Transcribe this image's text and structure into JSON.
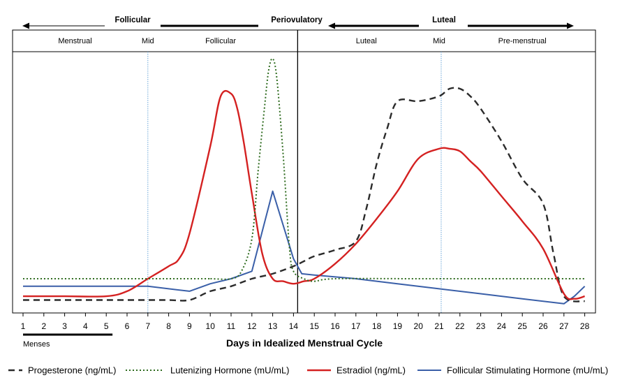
{
  "chart_data": {
    "type": "line",
    "title": "",
    "xlabel": "Days in Idealized Menstrual Cycle",
    "ylabel": "",
    "xlim": [
      1,
      28
    ],
    "ylim": [
      0,
      100
    ],
    "grid": false,
    "legend_placement": "bottom",
    "x_ticks": [
      "1",
      "2",
      "3",
      "4",
      "5",
      "6",
      "7",
      "8",
      "9",
      "10",
      "11",
      "12",
      "13",
      "14",
      "15",
      "16",
      "17",
      "18",
      "19",
      "20",
      "21",
      "22",
      "23",
      "24",
      "25",
      "26",
      "27",
      "28"
    ],
    "phases_top": [
      {
        "label": "Follicular",
        "start": 1,
        "end": 13.5,
        "arrow": "left"
      },
      {
        "label": "Periovulatory",
        "start": 13.5,
        "end": 15.5,
        "arrow": "none"
      },
      {
        "label": "Luteal",
        "start": 15.5,
        "end": 28,
        "arrow": "both"
      }
    ],
    "subphases": [
      {
        "label": "Menstrual",
        "x": 3.5
      },
      {
        "label": "Mid",
        "x": 7
      },
      {
        "label": "Follicular",
        "x": 10.5
      },
      {
        "label": "Luteal",
        "x": 17.5
      },
      {
        "label": "Mid",
        "x": 21
      },
      {
        "label": "Pre-menstrual",
        "x": 25
      }
    ],
    "reference_lines": [
      {
        "x": 7,
        "style": "dotted"
      },
      {
        "x": 14.2,
        "style": "solid"
      },
      {
        "x": 21.1,
        "style": "dotted"
      }
    ],
    "menses": {
      "label": "Menses",
      "start": 1,
      "end": 5.3
    },
    "series": [
      {
        "name": "Progesterone (ng/mL)",
        "color": "#2b2b2b",
        "dash": "9,6",
        "width": 2.4,
        "x": [
          1,
          3,
          5,
          7,
          8,
          9,
          10,
          11,
          12,
          13,
          14,
          14.5,
          15,
          16,
          17,
          17.5,
          18,
          18.5,
          19,
          20,
          21,
          21.5,
          22,
          22.5,
          23,
          24,
          25,
          26,
          26.5,
          27,
          28
        ],
        "y": [
          3.5,
          3.5,
          3.5,
          3.5,
          3.5,
          3.5,
          7,
          9,
          12,
          14,
          17,
          19,
          21,
          23.5,
          27,
          40,
          58,
          72,
          83,
          83,
          85,
          88,
          88,
          85,
          80,
          67,
          52,
          42,
          22,
          5,
          3
        ]
      },
      {
        "name": "Lutenizing Hormone (mU/mL)",
        "color": "#2e6b1e",
        "dash": "2,3",
        "width": 2.0,
        "x": [
          1,
          9,
          10,
          11,
          11.5,
          12,
          12.3,
          12.6,
          12.8,
          13,
          13.2,
          13.5,
          13.8,
          14,
          14.5,
          15,
          16,
          20,
          25,
          28
        ],
        "y": [
          12,
          12,
          12,
          12,
          15,
          28,
          55,
          80,
          95,
          100,
          92,
          62,
          25,
          15,
          12,
          11,
          12,
          12,
          12,
          12
        ]
      },
      {
        "name": "Estradiol (ng/mL)",
        "color": "#d42121",
        "dash": "",
        "width": 2.4,
        "x": [
          1,
          3,
          5,
          6,
          7,
          8,
          8.5,
          9,
          10,
          10.5,
          11,
          11.3,
          11.6,
          12,
          12.5,
          13,
          13.5,
          14,
          14.5,
          15,
          16,
          17,
          18,
          19,
          20,
          21,
          21.5,
          22,
          22.5,
          23,
          24,
          25,
          26,
          27,
          27.5,
          28
        ],
        "y": [
          5,
          5,
          5,
          7,
          12,
          17,
          20,
          30,
          65,
          85,
          86,
          80,
          67,
          46,
          22,
          12,
          11,
          10,
          11,
          12,
          18,
          26,
          36,
          47,
          60,
          64,
          64,
          63,
          59,
          55,
          45,
          35,
          24,
          6,
          4,
          5
        ]
      },
      {
        "name": "Follicular Stimulating Hormone (mU/mL)",
        "color": "#3a5fa8",
        "dash": "",
        "width": 2.0,
        "x": [
          1,
          3,
          5,
          7,
          9,
          10,
          11,
          12,
          13,
          14,
          14.4,
          15,
          17,
          19,
          21,
          23,
          25,
          27,
          27.5,
          28
        ],
        "y": [
          9,
          9,
          9,
          9,
          7,
          10,
          12,
          15,
          47,
          20,
          14,
          13.5,
          12,
          10,
          8,
          6,
          4,
          2,
          5,
          9
        ]
      }
    ]
  }
}
